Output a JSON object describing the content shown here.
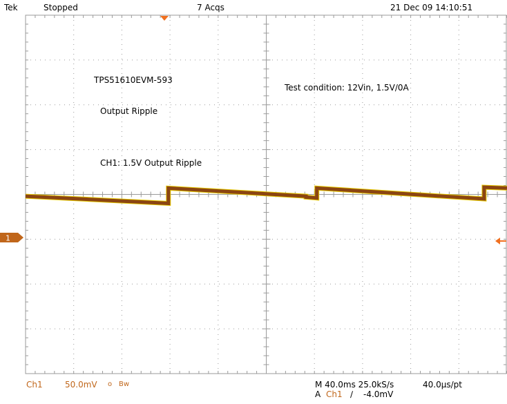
{
  "header": {
    "brand": "Tek",
    "state": "Stopped",
    "acquisitions": "7 Acqs",
    "datetime": "21 Dec 09 14:10:51"
  },
  "annotations": {
    "board": "TPS51610EVM-593",
    "measurement": "Output Ripple",
    "channel_note": "CH1: 1.5V Output Ripple",
    "condition": "Test condition: 12Vin, 1.5V/0A"
  },
  "channel_marker": {
    "label": "1"
  },
  "footer": {
    "ch_label": "Ch1",
    "scale": "50.0mV",
    "coupling_symbol": "ο",
    "bw_label": "Bw",
    "time_scale": "M 40.0ms 25.0kS/s",
    "sample_interval": "40.0µs/pt",
    "trigger_prefix": "A",
    "trigger_channel": "Ch1",
    "trigger_slope": "∕",
    "trigger_level": "-4.0mV"
  },
  "colors": {
    "trace": "#8b4513",
    "trace_highlight": "#e6c800",
    "grid": "#9a9a9a",
    "marker": "#c0661a",
    "trigger_marker": "#f07020"
  },
  "chart_data": {
    "type": "line",
    "title": "",
    "xlabel": "",
    "ylabel": "",
    "x_unit": "ms",
    "y_unit": "mV",
    "xlim": [
      0,
      400
    ],
    "ylim": [
      -200,
      200
    ],
    "grid": true,
    "series": [
      {
        "name": "Ch1",
        "points": [
          [
            0,
            -2
          ],
          [
            118.7,
            -10
          ],
          [
            118.7,
            7
          ],
          [
            233,
            -2
          ],
          [
            233,
            -3
          ],
          [
            242,
            -4
          ],
          [
            242,
            7
          ],
          [
            381,
            -5
          ],
          [
            381,
            8
          ],
          [
            400,
            7
          ]
        ]
      }
    ]
  }
}
